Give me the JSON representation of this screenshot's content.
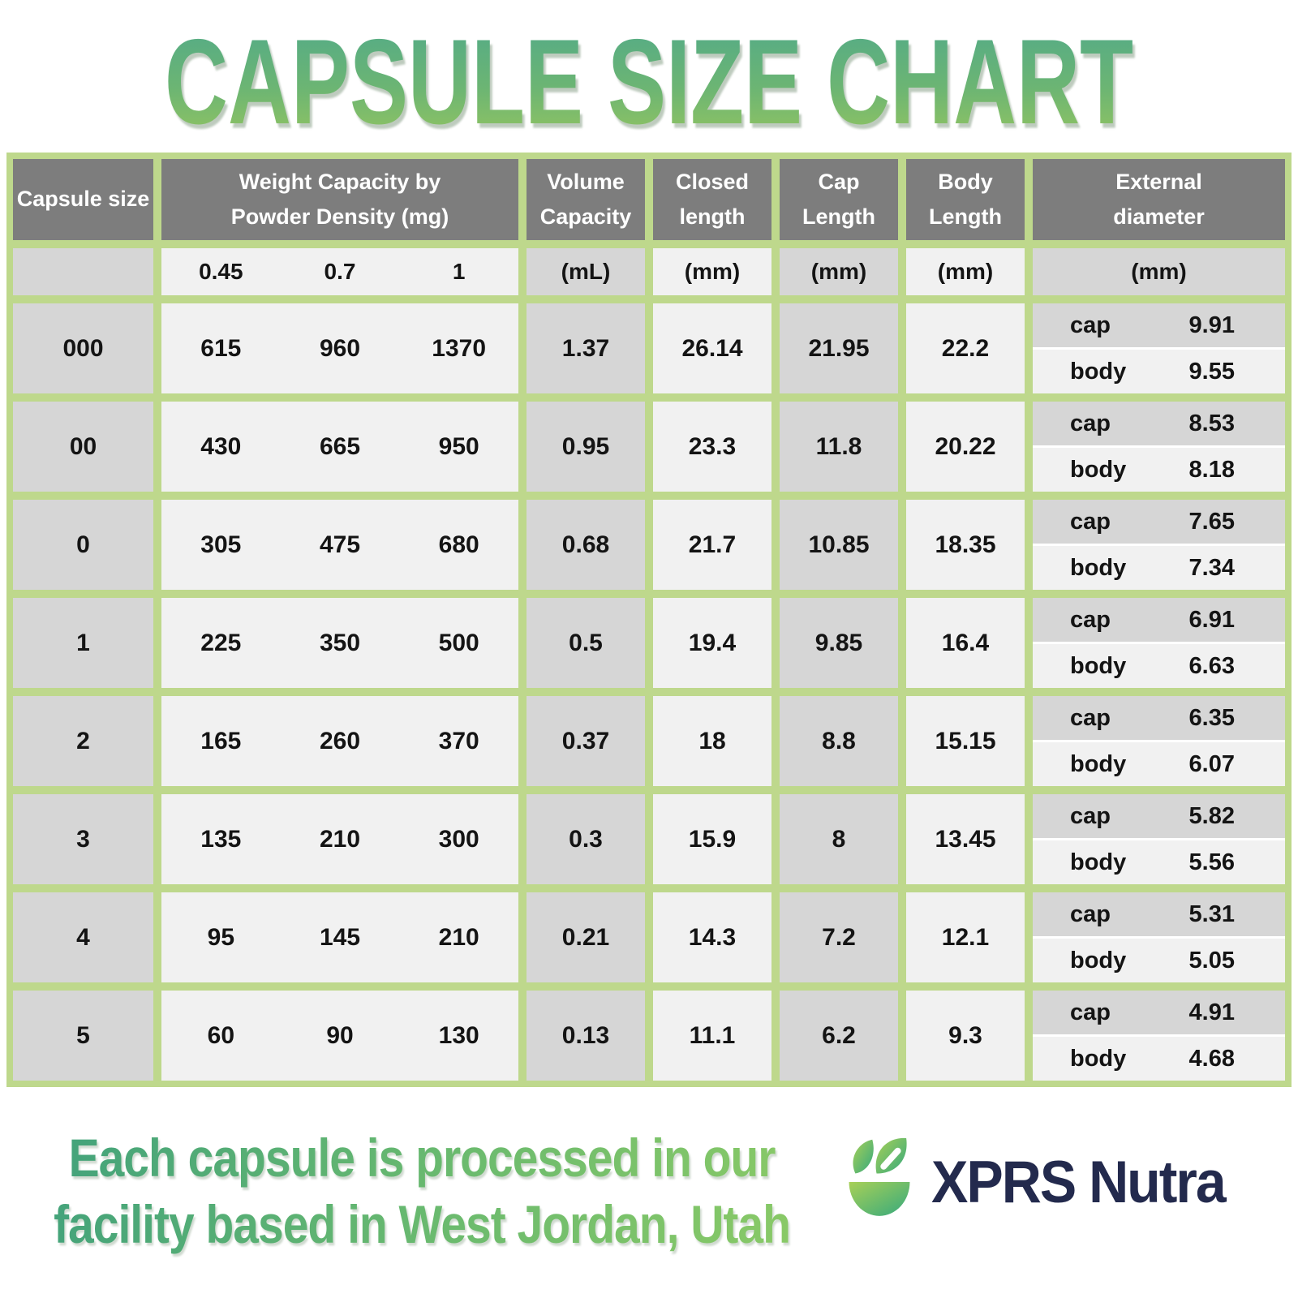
{
  "title": "CAPSULE SIZE CHART",
  "table": {
    "headers": {
      "capsule_size": "Capsule size",
      "weight_capacity": "Weight Capacity by\nPowder Density (mg)",
      "volume_capacity": "Volume\nCapacity",
      "closed_length": "Closed\nlength",
      "cap_length": "Cap\nLength",
      "body_length": "Body\nLength",
      "external_diameter": "External\ndiameter"
    },
    "units": {
      "densities": [
        "0.45",
        "0.7",
        "1"
      ],
      "volume": "(mL)",
      "closed": "(mm)",
      "cap": "(mm)",
      "body": "(mm)",
      "external": "(mm)"
    },
    "sub_labels": {
      "cap": "cap",
      "body": "body"
    },
    "rows": [
      {
        "size": "000",
        "weights": [
          "615",
          "960",
          "1370"
        ],
        "volume": "1.37",
        "closed": "26.14",
        "cap_length": "21.95",
        "body_length": "22.2",
        "ext_cap": "9.91",
        "ext_body": "9.55"
      },
      {
        "size": "00",
        "weights": [
          "430",
          "665",
          "950"
        ],
        "volume": "0.95",
        "closed": "23.3",
        "cap_length": "11.8",
        "body_length": "20.22",
        "ext_cap": "8.53",
        "ext_body": "8.18"
      },
      {
        "size": "0",
        "weights": [
          "305",
          "475",
          "680"
        ],
        "volume": "0.68",
        "closed": "21.7",
        "cap_length": "10.85",
        "body_length": "18.35",
        "ext_cap": "7.65",
        "ext_body": "7.34"
      },
      {
        "size": "1",
        "weights": [
          "225",
          "350",
          "500"
        ],
        "volume": "0.5",
        "closed": "19.4",
        "cap_length": "9.85",
        "body_length": "16.4",
        "ext_cap": "6.91",
        "ext_body": "6.63"
      },
      {
        "size": "2",
        "weights": [
          "165",
          "260",
          "370"
        ],
        "volume": "0.37",
        "closed": "18",
        "cap_length": "8.8",
        "body_length": "15.15",
        "ext_cap": "6.35",
        "ext_body": "6.07"
      },
      {
        "size": "3",
        "weights": [
          "135",
          "210",
          "300"
        ],
        "volume": "0.3",
        "closed": "15.9",
        "cap_length": "8",
        "body_length": "13.45",
        "ext_cap": "5.82",
        "ext_body": "5.56"
      },
      {
        "size": "4",
        "weights": [
          "95",
          "145",
          "210"
        ],
        "volume": "0.21",
        "closed": "14.3",
        "cap_length": "7.2",
        "body_length": "12.1",
        "ext_cap": "5.31",
        "ext_body": "5.05"
      },
      {
        "size": "5",
        "weights": [
          "60",
          "90",
          "130"
        ],
        "volume": "0.13",
        "closed": "11.1",
        "cap_length": "6.2",
        "body_length": "9.3",
        "ext_cap": "4.91",
        "ext_body": "4.68"
      }
    ]
  },
  "footer": {
    "note": "Each capsule is processed in our\nfacility based in West Jordan, Utah",
    "brand": "XPRS Nutra"
  },
  "colors": {
    "border_green": "#bed88c",
    "header_gray": "#7d7d7d",
    "cell_gray": "#d6d6d6",
    "cell_light": "#f1f1f1",
    "title_gradient_top": "#4fa98b",
    "title_gradient_bottom": "#99c75e",
    "brand_navy": "#232a4d"
  },
  "chart_data": {
    "type": "table",
    "title": "CAPSULE SIZE CHART",
    "columns": [
      "Capsule size",
      "Weight Capacity 0.45 density (mg)",
      "Weight Capacity 0.7 density (mg)",
      "Weight Capacity 1 density (mg)",
      "Volume Capacity (mL)",
      "Closed length (mm)",
      "Cap Length (mm)",
      "Body Length (mm)",
      "External diameter cap (mm)",
      "External diameter body (mm)"
    ],
    "rows": [
      [
        "000",
        615,
        960,
        1370,
        1.37,
        26.14,
        21.95,
        22.2,
        9.91,
        9.55
      ],
      [
        "00",
        430,
        665,
        950,
        0.95,
        23.3,
        11.8,
        20.22,
        8.53,
        8.18
      ],
      [
        "0",
        305,
        475,
        680,
        0.68,
        21.7,
        10.85,
        18.35,
        7.65,
        7.34
      ],
      [
        "1",
        225,
        350,
        500,
        0.5,
        19.4,
        9.85,
        16.4,
        6.91,
        6.63
      ],
      [
        "2",
        165,
        260,
        370,
        0.37,
        18,
        8.8,
        15.15,
        6.35,
        6.07
      ],
      [
        "3",
        135,
        210,
        300,
        0.3,
        15.9,
        8,
        13.45,
        5.82,
        5.56
      ],
      [
        "4",
        95,
        145,
        210,
        0.21,
        14.3,
        7.2,
        12.1,
        5.31,
        5.05
      ],
      [
        "5",
        60,
        90,
        130,
        0.13,
        11.1,
        6.2,
        9.3,
        4.91,
        4.68
      ]
    ]
  }
}
